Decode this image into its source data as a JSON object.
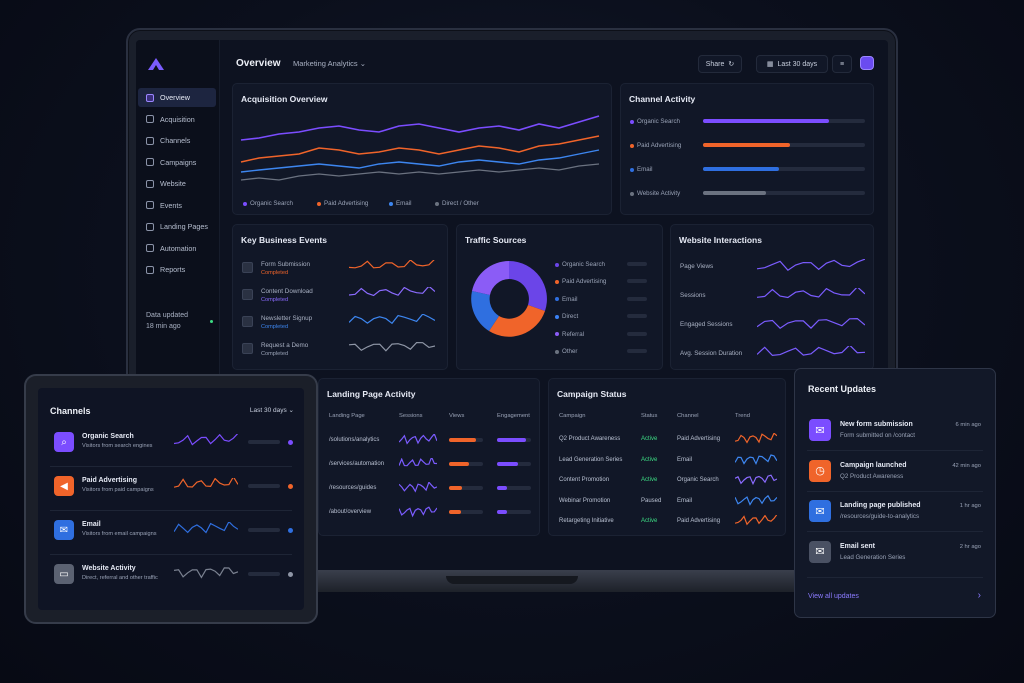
{
  "header": {
    "title": "Overview",
    "workspace": "Marketing Analytics",
    "share_label": "Share",
    "date_range": "Last 30 days"
  },
  "sidebar": {
    "items": [
      {
        "label": "Overview",
        "icon": "home-icon",
        "active": true
      },
      {
        "label": "Acquisition",
        "icon": "acquisition-icon"
      },
      {
        "label": "Channels",
        "icon": "channels-icon"
      },
      {
        "label": "Campaigns",
        "icon": "megaphone-icon"
      },
      {
        "label": "Website",
        "icon": "globe-icon"
      },
      {
        "label": "Events",
        "icon": "calendar-icon"
      },
      {
        "label": "Landing Pages",
        "icon": "page-icon"
      },
      {
        "label": "Automation",
        "icon": "automation-icon"
      },
      {
        "label": "Reports",
        "icon": "reports-icon"
      }
    ],
    "status_label": "Data updated",
    "status_time": "18 min ago"
  },
  "acquisition": {
    "title": "Acquisition Overview",
    "legend": [
      "Organic Search",
      "Paid Advertising",
      "Email",
      "Direct / Other"
    ]
  },
  "channel_activity": {
    "title": "Channel Activity",
    "rows": [
      {
        "label": "Organic Search",
        "level": 0.78,
        "color": "#7b4dff"
      },
      {
        "label": "Paid Advertising",
        "level": 0.54,
        "color": "#f0642a"
      },
      {
        "label": "Email",
        "level": 0.47,
        "color": "#2f6fe0"
      },
      {
        "label": "Website Activity",
        "level": 0.39,
        "color": "#6b7280"
      }
    ]
  },
  "key_events": {
    "title": "Key Business Events",
    "items": [
      {
        "name": "Form Submission",
        "status": "Completed",
        "status_color": "#f0642a"
      },
      {
        "name": "Content Download",
        "status": "Completed",
        "status_color": "#8b6bff"
      },
      {
        "name": "Newsletter Signup",
        "status": "Completed",
        "status_color": "#3d86f0"
      },
      {
        "name": "Request a Demo",
        "status": "Completed",
        "status_color": "#9aa3b7"
      }
    ]
  },
  "traffic_sources": {
    "title": "Traffic Sources",
    "items": [
      {
        "label": "Organic Search",
        "color": "#6b45e8"
      },
      {
        "label": "Paid Advertising",
        "color": "#f0642a"
      },
      {
        "label": "Email",
        "color": "#2f6fe0"
      },
      {
        "label": "Direct",
        "color": "#3b82f6"
      },
      {
        "label": "Referral",
        "color": "#8b5cf6"
      },
      {
        "label": "Other",
        "color": "#6b7280"
      }
    ]
  },
  "website_interactions": {
    "title": "Website Interactions",
    "metrics": [
      "Page Views",
      "Sessions",
      "Engaged Sessions",
      "Avg. Session Duration"
    ]
  },
  "landing_pages": {
    "title": "Landing Page Activity",
    "columns": [
      "Landing Page",
      "Sessions",
      "Views",
      "Engagement"
    ],
    "rows": [
      {
        "page": "/solutions/analytics",
        "views": 0.78,
        "engagement": 0.85
      },
      {
        "page": "/services/automation",
        "views": 0.6,
        "engagement": 0.62
      },
      {
        "page": "/resources/guides",
        "views": 0.38,
        "engagement": 0.3
      },
      {
        "page": "/about/overview",
        "views": 0.34,
        "engagement": 0.3
      }
    ]
  },
  "campaign_status": {
    "title": "Campaign Status",
    "columns": [
      "Campaign",
      "Status",
      "Channel",
      "Trend"
    ],
    "rows": [
      {
        "campaign": "Q2 Product Awareness",
        "status": "Active",
        "channel": "Paid Advertising",
        "trend_color": "#f0642a"
      },
      {
        "campaign": "Lead Generation Series",
        "status": "Active",
        "channel": "Email",
        "trend_color": "#3d86f0"
      },
      {
        "campaign": "Content Promotion",
        "status": "Active",
        "channel": "Organic Search",
        "trend_color": "#8b6bff"
      },
      {
        "campaign": "Webinar Promotion",
        "status": "Paused",
        "channel": "Email",
        "trend_color": "#3d86f0"
      },
      {
        "campaign": "Retargeting Initiative",
        "status": "Active",
        "channel": "Paid Advertising",
        "trend_color": "#f0642a"
      }
    ]
  },
  "tablet": {
    "title": "Channels",
    "range": "Last 30 days",
    "channels": [
      {
        "name": "Organic Search",
        "desc": "Visitors from search engines",
        "color": "#7b4dff",
        "glyph": "⌕"
      },
      {
        "name": "Paid Advertising",
        "desc": "Visitors from paid campaigns",
        "color": "#f0642a",
        "glyph": "◀"
      },
      {
        "name": "Email",
        "desc": "Visitors from email campaigns",
        "color": "#2f6fe0",
        "glyph": "✉"
      },
      {
        "name": "Website Activity",
        "desc": "Direct, referral and other traffic",
        "color": "#5b6272",
        "glyph": "▭"
      }
    ]
  },
  "updates": {
    "title": "Recent Updates",
    "items": [
      {
        "title": "New form submission",
        "detail": "Form submitted on /contact",
        "time": "6 min ago",
        "color": "#7b4dff",
        "glyph": "✉"
      },
      {
        "title": "Campaign launched",
        "detail": "Q2 Product Awareness",
        "time": "42 min ago",
        "color": "#f0642a",
        "glyph": "◷"
      },
      {
        "title": "Landing page published",
        "detail": "/resources/guide-to-analytics",
        "time": "1 hr ago",
        "color": "#2f6fe0",
        "glyph": "✉"
      },
      {
        "title": "Email sent",
        "detail": "Lead Generation Series",
        "time": "2 hr ago",
        "color": "#4a5163",
        "glyph": "✉"
      }
    ],
    "view_all": "View all updates"
  }
}
